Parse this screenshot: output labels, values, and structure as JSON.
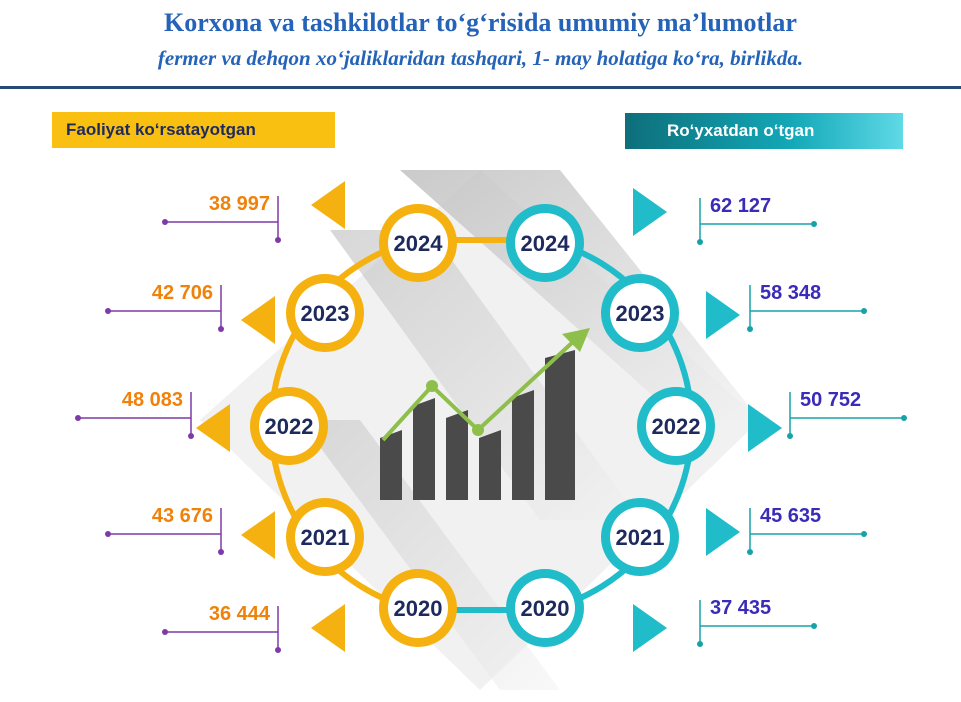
{
  "header": {
    "title": "Korxona va tashkilotlar to‘g‘risida umumiy ma’lumotlar",
    "subtitle": "fermer va dehqon xo‘jaliklaridan tashqari, 1- may holatiga ko‘ra, birlikda."
  },
  "colors": {
    "title": "#2563b8",
    "active": "#f5b10f",
    "active_value": "#f0820a",
    "registered": "#20bcc9",
    "registered_value": "#3a2bb8",
    "year_text": "#1e2a5e",
    "leader_left": "#7d3aa8",
    "leader_right": "#16a3a8",
    "bars": "#4a4a4a",
    "trend": "#8dbf4a"
  },
  "chart_data": {
    "type": "infographic",
    "categories": [
      "2024",
      "2023",
      "2022",
      "2021",
      "2020"
    ],
    "series": [
      {
        "name": "Faoliyat ko‘rsatayotgan",
        "values": [
          38997,
          42706,
          48083,
          43676,
          36444
        ],
        "labels": [
          "38 997",
          "42 706",
          "48 083",
          "43 676",
          "36 444"
        ]
      },
      {
        "name": "Ro‘yxatdan o‘tgan",
        "values": [
          62127,
          58348,
          50752,
          45635,
          37435
        ],
        "labels": [
          "62 127",
          "58 348",
          "50 752",
          "45 635",
          "37 435"
        ]
      }
    ]
  }
}
